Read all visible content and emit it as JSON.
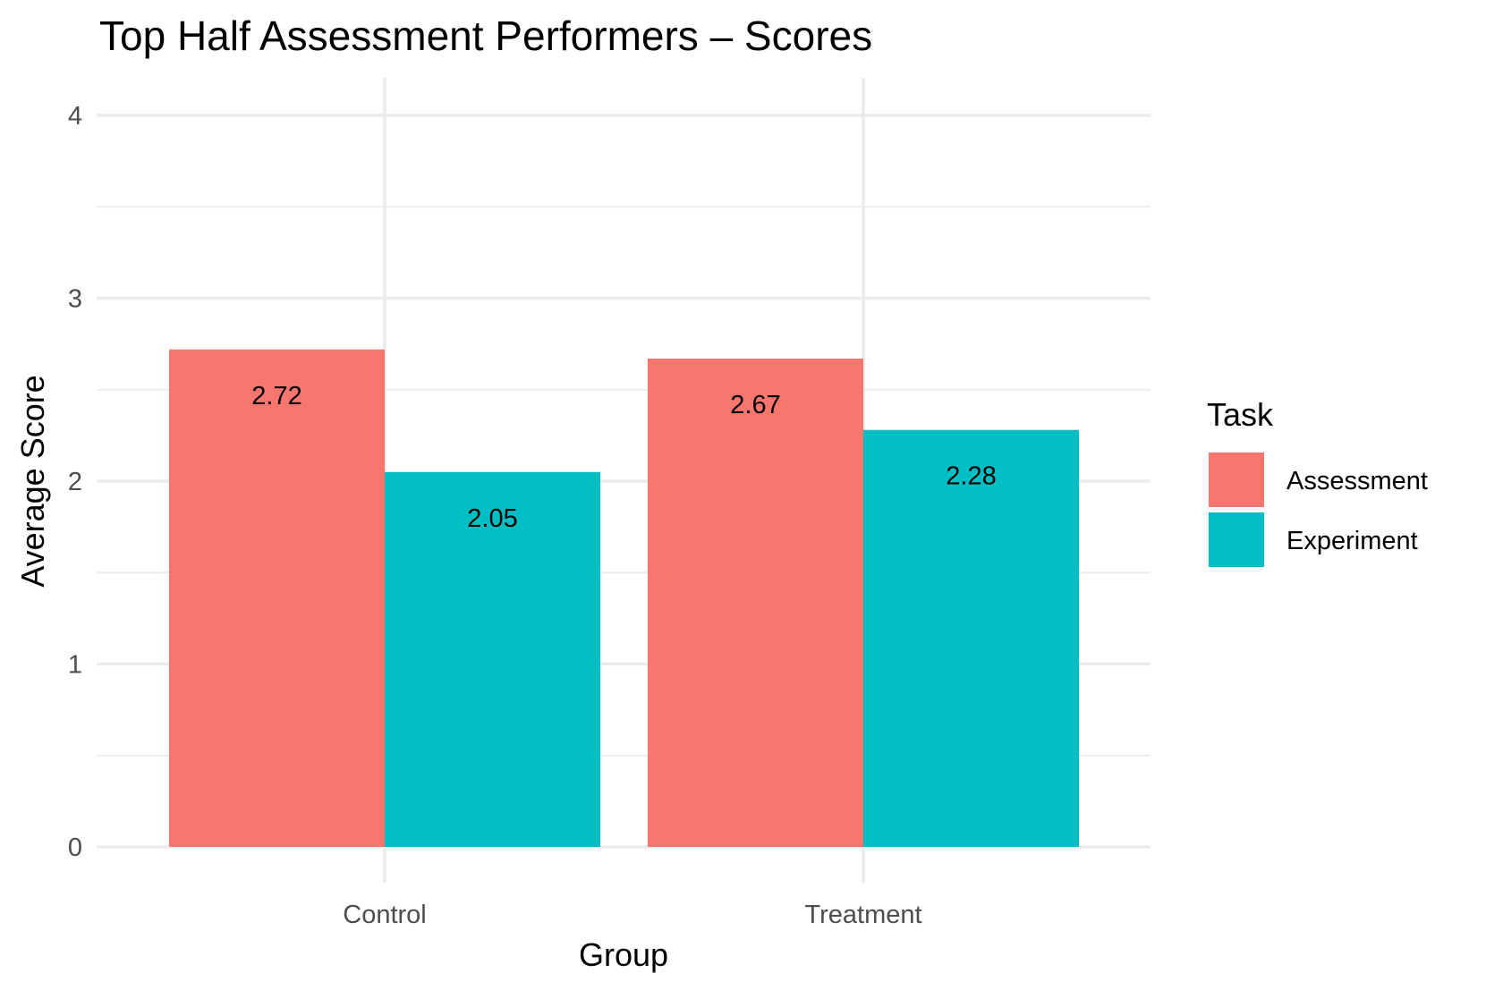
{
  "chart_data": {
    "type": "bar",
    "title": "Top Half Assessment Performers – Scores",
    "xlabel": "Group",
    "ylabel": "Average Score",
    "categories": [
      "Control",
      "Treatment"
    ],
    "series": [
      {
        "name": "Assessment",
        "values": [
          2.72,
          2.67
        ],
        "labels": [
          "2.72",
          "2.67"
        ],
        "color": "#F8766D"
      },
      {
        "name": "Experiment",
        "values": [
          2.05,
          2.28
        ],
        "labels": [
          "2.05",
          "2.28"
        ],
        "color": "#00BFC4"
      }
    ],
    "ylim": [
      0,
      4
    ],
    "yticks": [
      "0",
      "1",
      "2",
      "3",
      "4"
    ],
    "legend_title": "Task",
    "legend_position": "right",
    "grid": true
  }
}
